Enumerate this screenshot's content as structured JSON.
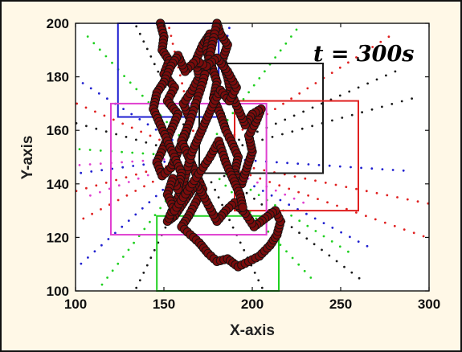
{
  "chart_data": {
    "type": "scatter",
    "xlabel": "X-axis",
    "ylabel": "Y-axis",
    "xlim": [
      100,
      300
    ],
    "ylim": [
      100,
      200
    ],
    "xticks": [
      100,
      150,
      200,
      250,
      300
    ],
    "yticks": [
      100,
      120,
      140,
      160,
      180,
      200
    ],
    "annotation": "t = 300s",
    "annotation_placement": "top-right",
    "grid": false,
    "background": "#fff8e7",
    "track": {
      "color": "#7a0c0c",
      "points": [
        [
          148,
          200
        ],
        [
          150,
          195
        ],
        [
          149,
          190
        ],
        [
          153,
          186
        ],
        [
          150,
          181
        ],
        [
          156,
          176
        ],
        [
          152,
          171
        ],
        [
          158,
          166
        ],
        [
          154,
          160
        ],
        [
          150,
          154
        ],
        [
          146,
          148
        ],
        [
          149,
          143
        ],
        [
          154,
          146
        ],
        [
          158,
          152
        ],
        [
          162,
          158
        ],
        [
          165,
          164
        ],
        [
          161,
          170
        ],
        [
          166,
          175
        ],
        [
          170,
          180
        ],
        [
          168,
          186
        ],
        [
          172,
          192
        ],
        [
          176,
          196
        ],
        [
          174,
          190
        ],
        [
          177,
          184
        ],
        [
          180,
          178
        ],
        [
          178,
          172
        ],
        [
          182,
          166
        ],
        [
          185,
          160
        ],
        [
          188,
          156
        ],
        [
          192,
          150
        ],
        [
          190,
          144
        ],
        [
          194,
          140
        ],
        [
          197,
          146
        ],
        [
          200,
          152
        ],
        [
          198,
          158
        ],
        [
          202,
          163
        ],
        [
          205,
          168
        ],
        [
          200,
          166
        ],
        [
          196,
          162
        ],
        [
          192,
          168
        ],
        [
          188,
          174
        ],
        [
          186,
          180
        ],
        [
          183,
          186
        ],
        [
          186,
          192
        ],
        [
          182,
          196
        ],
        [
          180,
          200
        ],
        [
          176,
          188
        ],
        [
          172,
          178
        ],
        [
          168,
          170
        ],
        [
          164,
          162
        ],
        [
          160,
          156
        ],
        [
          164,
          150
        ],
        [
          168,
          144
        ],
        [
          172,
          138
        ],
        [
          168,
          133
        ],
        [
          164,
          128
        ],
        [
          160,
          124
        ],
        [
          165,
          121
        ],
        [
          170,
          118
        ],
        [
          175,
          114
        ],
        [
          180,
          111
        ],
        [
          186,
          112
        ],
        [
          192,
          109
        ],
        [
          198,
          111
        ],
        [
          204,
          113
        ],
        [
          210,
          117
        ],
        [
          214,
          121
        ],
        [
          216,
          126
        ],
        [
          213,
          130
        ],
        [
          207,
          127
        ],
        [
          201,
          124
        ],
        [
          196,
          129
        ],
        [
          190,
          133
        ],
        [
          185,
          130
        ],
        [
          180,
          126
        ],
        [
          176,
          131
        ],
        [
          172,
          136
        ],
        [
          168,
          140
        ],
        [
          164,
          136
        ],
        [
          160,
          132
        ],
        [
          156,
          128
        ],
        [
          152,
          126
        ],
        [
          156,
          132
        ],
        [
          160,
          138
        ],
        [
          163,
          145
        ],
        [
          166,
          152
        ],
        [
          170,
          158
        ],
        [
          174,
          164
        ],
        [
          178,
          170
        ],
        [
          182,
          175
        ],
        [
          187,
          171
        ],
        [
          191,
          176
        ],
        [
          186,
          182
        ],
        [
          180,
          187
        ],
        [
          174,
          184
        ],
        [
          168,
          186
        ],
        [
          162,
          182
        ],
        [
          158,
          188
        ],
        [
          154,
          184
        ],
        [
          150,
          178
        ],
        [
          146,
          174
        ],
        [
          144,
          168
        ],
        [
          148,
          162
        ],
        [
          152,
          156
        ],
        [
          156,
          150
        ],
        [
          160,
          144
        ],
        [
          158,
          138
        ],
        [
          155,
          142
        ],
        [
          152,
          136
        ],
        [
          156,
          130
        ],
        [
          176,
          150
        ],
        [
          181,
          156
        ],
        [
          185,
          148
        ],
        [
          189,
          142
        ],
        [
          193,
          136
        ],
        [
          195,
          130
        ]
      ]
    },
    "boxes": [
      {
        "color": "#2020d0",
        "x": [
          124,
          181
        ],
        "y": [
          165,
          200
        ]
      },
      {
        "color": "#1a1a1a",
        "x": [
          170,
          240
        ],
        "y": [
          144,
          185
        ]
      },
      {
        "color": "#e02020",
        "x": [
          190,
          260
        ],
        "y": [
          130,
          171
        ]
      },
      {
        "color": "#e040d0",
        "x": [
          120,
          208
        ],
        "y": [
          121,
          170
        ]
      },
      {
        "color": "#20d020",
        "x": [
          146,
          215
        ],
        "y": [
          100,
          128
        ]
      }
    ],
    "scatter_fans": [
      {
        "color": "#e02020",
        "cx": 170,
        "cy": 150,
        "angles": [
          -15,
          -25,
          200,
          215,
          150,
          100,
          40
        ],
        "rmin": 20,
        "rmax": 140
      },
      {
        "color": "#2020d0",
        "cx": 170,
        "cy": 150,
        "angles": [
          -35,
          -5,
          190,
          230,
          140,
          80
        ],
        "rmin": 20,
        "rmax": 120
      },
      {
        "color": "#20d020",
        "cx": 170,
        "cy": 150,
        "angles": [
          -40,
          -55,
          175,
          240,
          125,
          60
        ],
        "rmin": 20,
        "rmax": 110
      },
      {
        "color": "#1a1a1a",
        "cx": 170,
        "cy": 150,
        "angles": [
          30,
          -45,
          160,
          250,
          110,
          -70,
          20
        ],
        "rmin": 20,
        "rmax": 130
      },
      {
        "color": "#e040d0",
        "cx": 170,
        "cy": 150,
        "angles": [
          185,
          205,
          -30
        ],
        "rmin": 20,
        "rmax": 70
      }
    ]
  }
}
